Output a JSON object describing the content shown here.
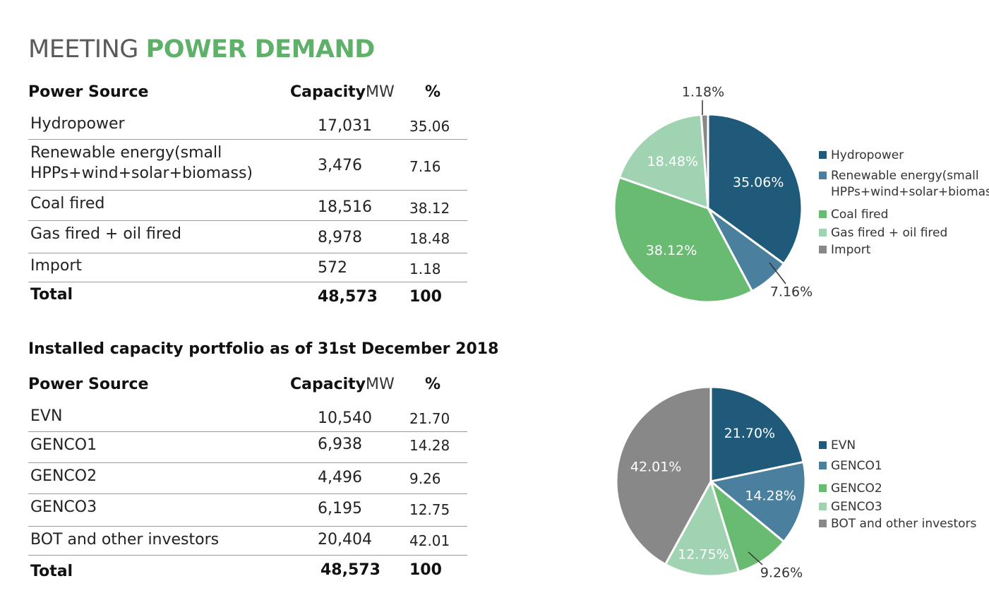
{
  "title": {
    "part1": "MEETING ",
    "part2": "POWER DEMAND"
  },
  "headers": {
    "source": "Power Source",
    "capacity": "Capacity",
    "unit": "MW",
    "percent": "%"
  },
  "subheading": "Installed capacity portfolio as of 31st December 2018",
  "table1": {
    "rows": [
      {
        "source": "Hydropower",
        "capacity": "17,031",
        "percent": "35.06"
      },
      {
        "source": "Renewable energy(small HPPs+wind+solar+biomass)",
        "capacity": "3,476",
        "percent": "7.16"
      },
      {
        "source": "Coal fired",
        "capacity": "18,516",
        "percent": "38.12"
      },
      {
        "source": "Gas fired + oil fired",
        "capacity": "8,978",
        "percent": "18.48"
      },
      {
        "source": "Import",
        "capacity": "572",
        "percent": "1.18"
      }
    ],
    "total": {
      "source": "Total",
      "capacity": "48,573",
      "percent": "100"
    }
  },
  "table2": {
    "rows": [
      {
        "source": "EVN",
        "capacity": "10,540",
        "percent": "21.70"
      },
      {
        "source": "GENCO1",
        "capacity": "6,938",
        "percent": "14.28"
      },
      {
        "source": "GENCO2",
        "capacity": "4,496",
        "percent": "9.26"
      },
      {
        "source": "GENCO3",
        "capacity": "6,195",
        "percent": "12.75"
      },
      {
        "source": "BOT and other investors",
        "capacity": "20,404",
        "percent": "42.01"
      }
    ],
    "total": {
      "source": "Total",
      "capacity": "48,573",
      "percent": "100"
    }
  },
  "chart_data": [
    {
      "type": "pie",
      "title": "",
      "categories": [
        "Hydropower",
        "Renewable energy(small HPPs+wind+solar+biomass)",
        "Coal fired",
        "Gas fired + oil fired",
        "Import"
      ],
      "values": [
        35.06,
        7.16,
        38.12,
        18.48,
        1.18
      ],
      "labels": [
        "35.06%",
        "7.16%",
        "38.12%",
        "18.48%",
        "1.18%"
      ],
      "colors": [
        "#1f5a7a",
        "#4a7f9e",
        "#6abb72",
        "#9fd3b2",
        "#888888"
      ],
      "legend_position": "right"
    },
    {
      "type": "pie",
      "title": "",
      "categories": [
        "EVN",
        "GENCO1",
        "GENCO2",
        "GENCO3",
        "BOT and other investors"
      ],
      "values": [
        21.7,
        14.28,
        9.26,
        12.75,
        42.01
      ],
      "labels": [
        "21.70%",
        "14.28%",
        "9.26%",
        "12.75%",
        "42.01%"
      ],
      "colors": [
        "#1f5a7a",
        "#4a7f9e",
        "#6abb72",
        "#9fd3b2",
        "#888888"
      ],
      "legend_position": "right"
    }
  ]
}
